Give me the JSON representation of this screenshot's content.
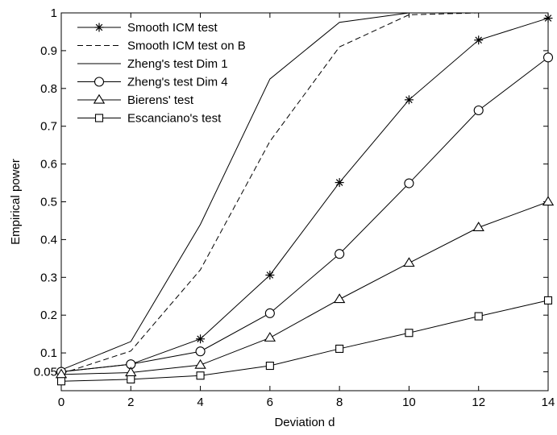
{
  "chart_data": {
    "type": "line",
    "title": "",
    "xlabel": "Deviation d",
    "ylabel": "Empirical power",
    "xlim": [
      0,
      14
    ],
    "ylim": [
      0.0,
      1.0
    ],
    "xticks": [
      0,
      2,
      4,
      6,
      8,
      10,
      12,
      14
    ],
    "xtick_labels": [
      "0",
      "2",
      "4",
      "6",
      "8",
      "10",
      "12",
      "14"
    ],
    "yticks": [
      0.05,
      0.1,
      0.2,
      0.3,
      0.4,
      0.5,
      0.6,
      0.7,
      0.8,
      0.9,
      1.0
    ],
    "ytick_labels": [
      "0.05",
      "0.1",
      "0.2",
      "0.3",
      "0.4",
      "0.5",
      "0.6",
      "0.7",
      "0.8",
      "0.9",
      "1"
    ],
    "grid": false,
    "legend_position": "top-left",
    "x": [
      0,
      2,
      4,
      6,
      8,
      10,
      12,
      14
    ],
    "series": [
      {
        "name": "Smooth ICM test",
        "marker": "asterisk",
        "line": "solid",
        "values": [
          0.05,
          0.07,
          0.137,
          0.306,
          0.551,
          0.77,
          0.928,
          0.986
        ]
      },
      {
        "name": "Smooth ICM test on B",
        "marker": "none",
        "line": "dashed",
        "values": [
          0.045,
          0.105,
          0.32,
          0.66,
          0.91,
          0.995,
          1.0,
          1.0
        ]
      },
      {
        "name": "Zheng's test Dim 1",
        "marker": "none",
        "line": "solid",
        "values": [
          0.055,
          0.13,
          0.44,
          0.825,
          0.975,
          1.0,
          1.0,
          1.0
        ]
      },
      {
        "name": "Zheng's test Dim 4",
        "marker": "circle",
        "line": "solid",
        "values": [
          0.05,
          0.07,
          0.104,
          0.205,
          0.362,
          0.549,
          0.742,
          0.882
        ]
      },
      {
        "name": "Bierens' test",
        "marker": "triangle",
        "line": "solid",
        "values": [
          0.043,
          0.048,
          0.068,
          0.14,
          0.242,
          0.338,
          0.432,
          0.5
        ]
      },
      {
        "name": "Escanciano's test",
        "marker": "square",
        "line": "solid",
        "values": [
          0.025,
          0.03,
          0.04,
          0.066,
          0.111,
          0.153,
          0.197,
          0.239
        ]
      }
    ]
  }
}
